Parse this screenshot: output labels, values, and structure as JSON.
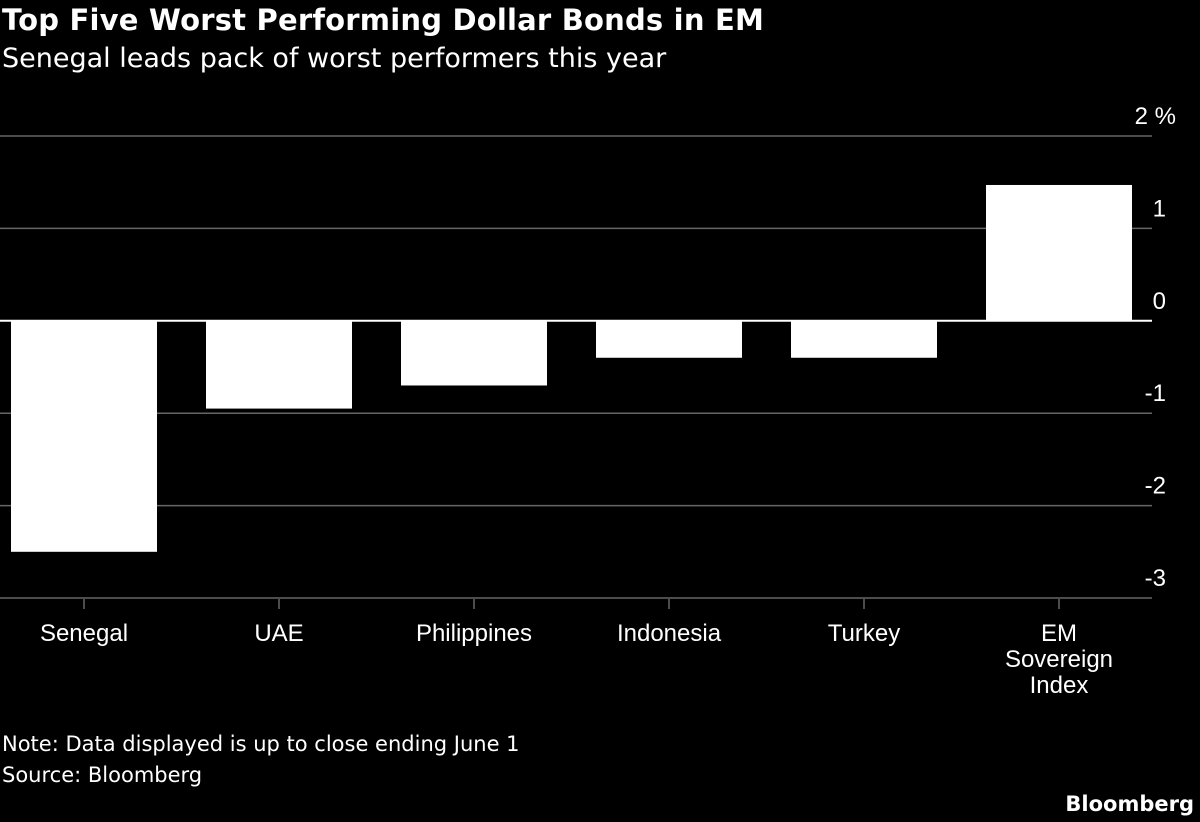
{
  "header": {
    "title": "Top Five Worst Performing Dollar Bonds in EM",
    "subtitle": "Senegal leads pack of worst performers this year"
  },
  "footer": {
    "note": "Note: Data displayed is up to close ending June 1",
    "source": "Source: Bloomberg",
    "brand": "Bloomberg"
  },
  "colors": {
    "background": "#000000",
    "bar": "#ffffff",
    "gridline": "#666666",
    "zero_line": "#ffffff",
    "text": "#ffffff"
  },
  "chart_data": {
    "type": "bar",
    "title": "Top Five Worst Performing Dollar Bonds in EM",
    "subtitle": "Senegal leads pack of worst performers this year",
    "categories": [
      "Senegal",
      "UAE",
      "Philippines",
      "Indonesia",
      "Turkey",
      "EM Sovereign Index"
    ],
    "category_lines": [
      [
        "Senegal"
      ],
      [
        "UAE"
      ],
      [
        "Philippines"
      ],
      [
        "Indonesia"
      ],
      [
        "Turkey"
      ],
      [
        "EM",
        "Sovereign",
        "Index"
      ]
    ],
    "values": [
      -2.5,
      -0.95,
      -0.7,
      -0.4,
      -0.4,
      1.47
    ],
    "ylim": [
      -3,
      2
    ],
    "yticks": [
      2,
      1,
      0,
      -1,
      -2,
      -3
    ],
    "ytick_labels": [
      "2 %",
      "1",
      "0",
      "-1",
      "-2",
      "-3"
    ],
    "unit": "%",
    "grid": true,
    "legend": "none"
  }
}
